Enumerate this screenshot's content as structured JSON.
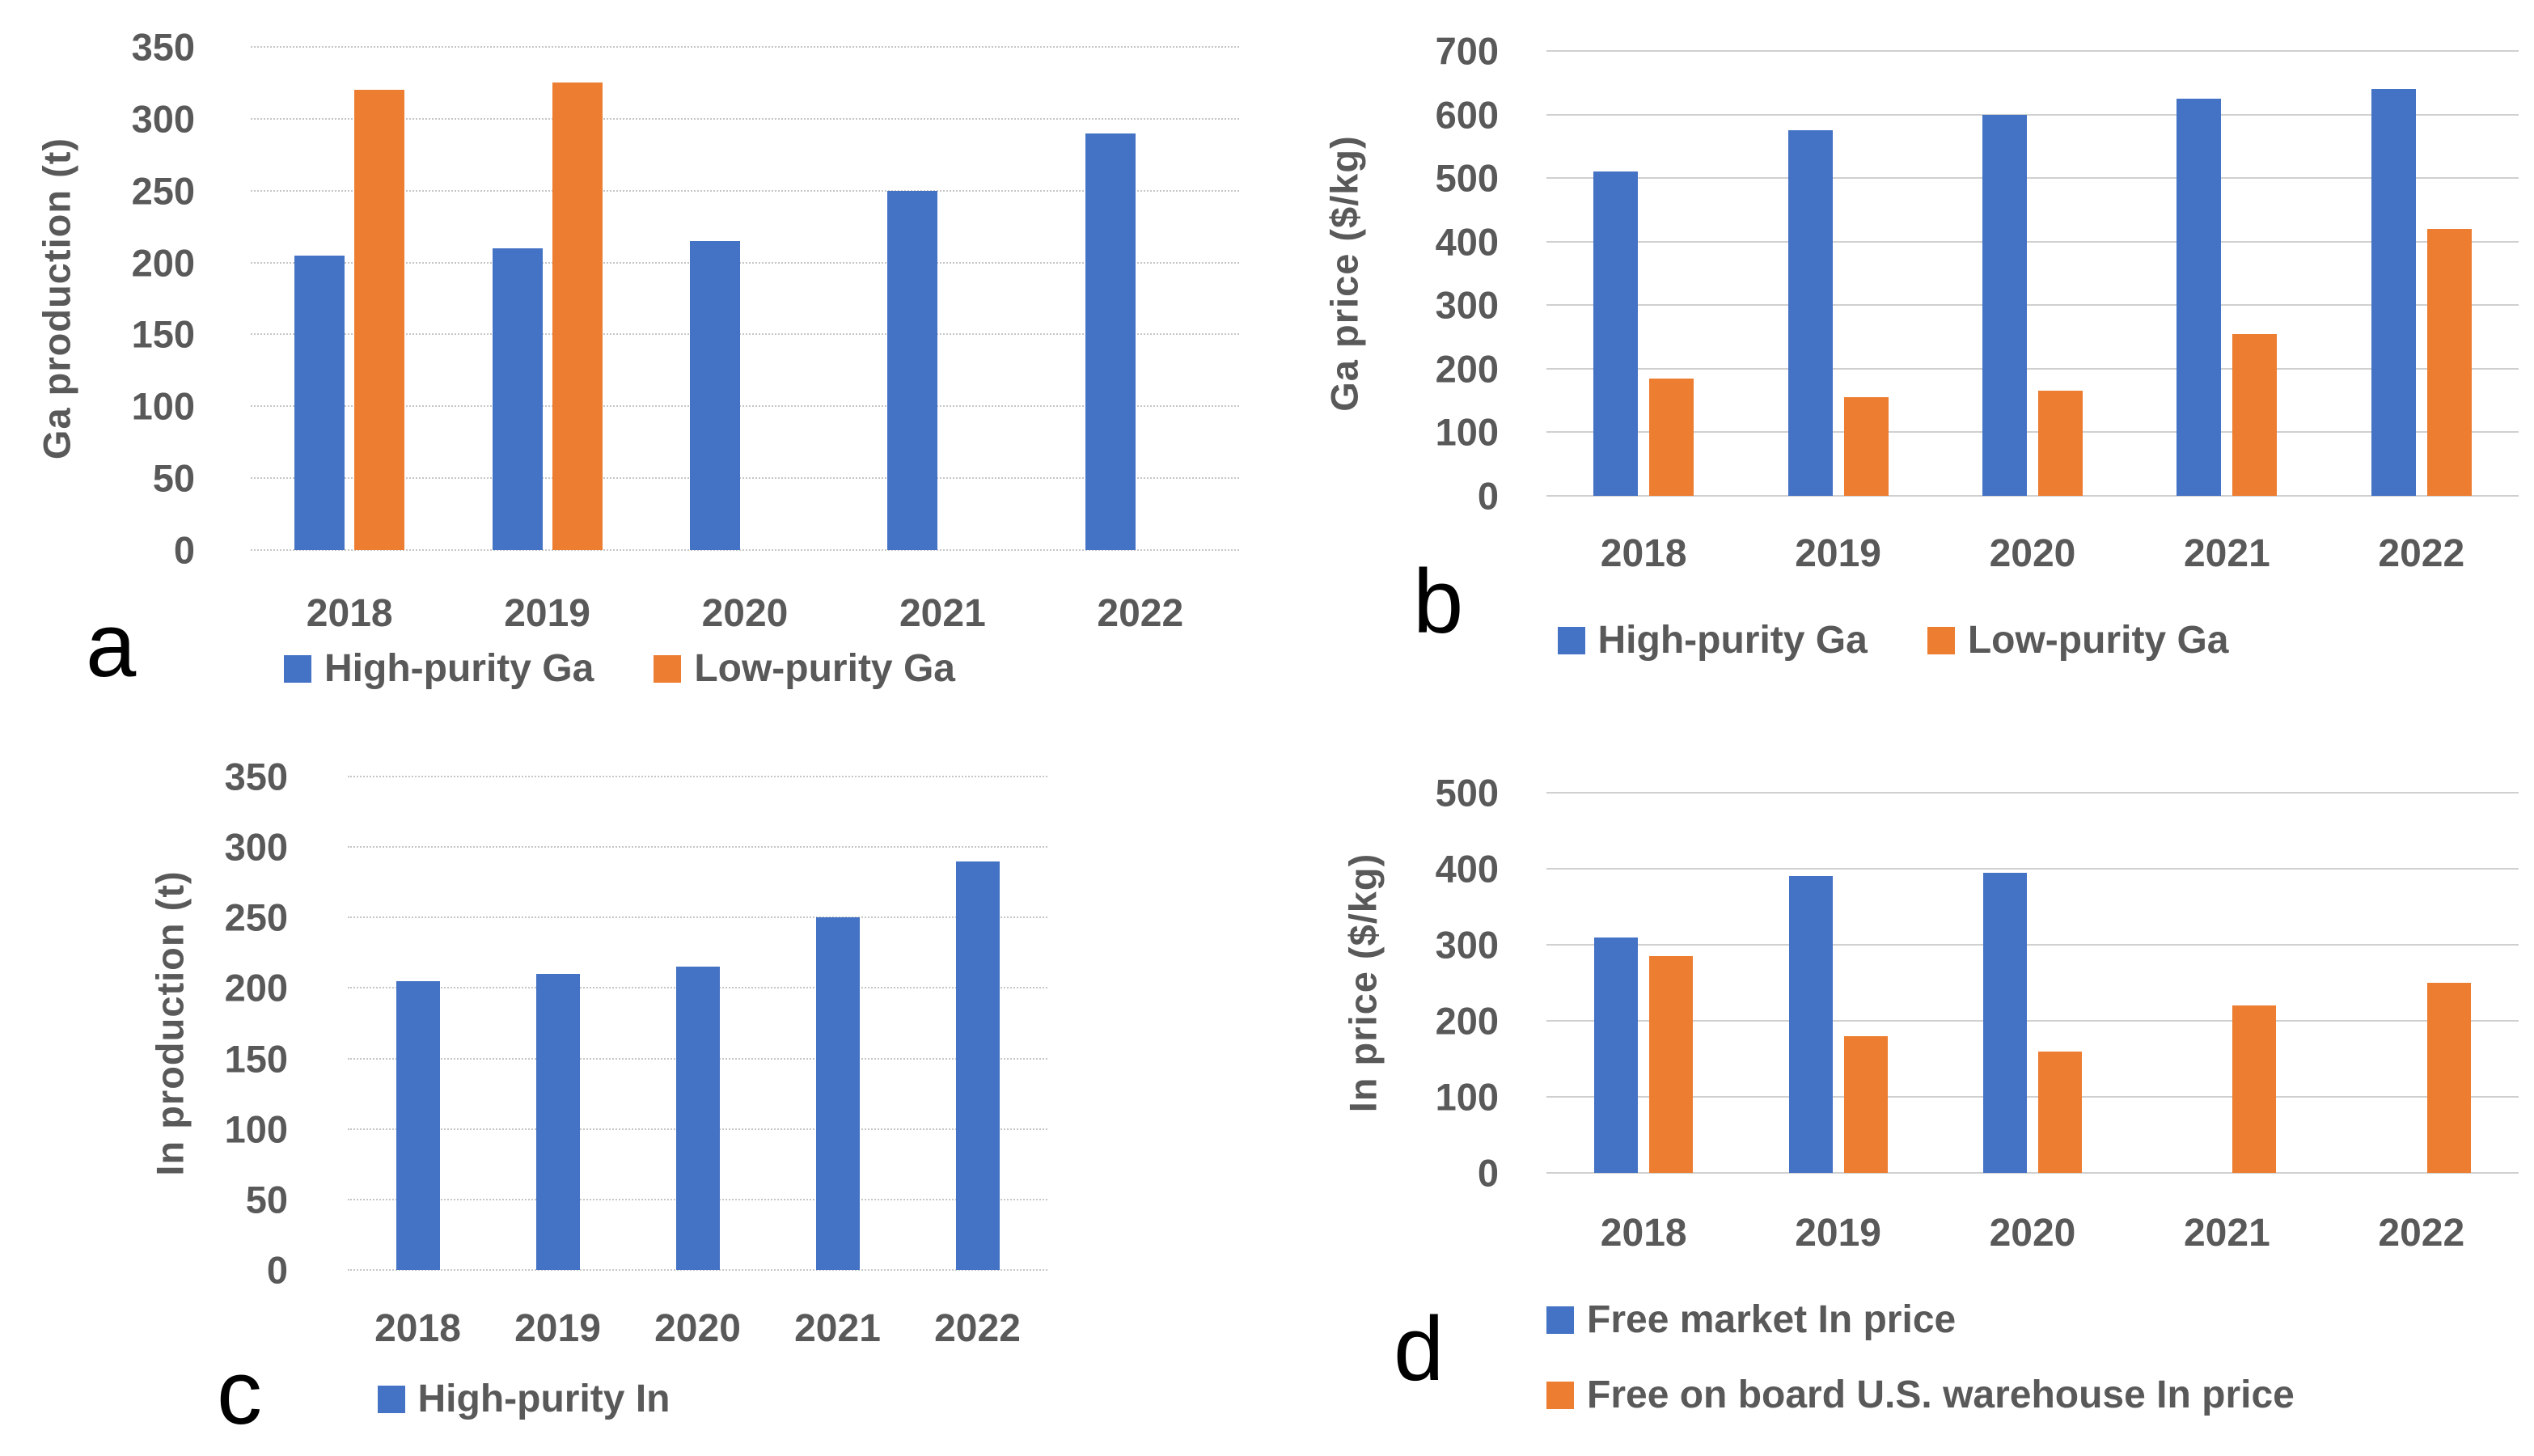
{
  "figure": {
    "background": "#ffffff",
    "text_color": "#595959",
    "panel_letter_color": "#000000"
  },
  "chart_data": [
    {
      "panel_label": "a",
      "type": "bar",
      "title": "",
      "xlabel": "",
      "ylabel": "Ga production (t)",
      "categories": [
        "2018",
        "2019",
        "2020",
        "2021",
        "2022"
      ],
      "ylim": [
        0,
        350
      ],
      "ytick_step": 50,
      "grid": "dotted-horizontal",
      "legend_position": "bottom-center-row",
      "series": [
        {
          "name": "High-purity Ga",
          "color": "#4472C4",
          "values": [
            205,
            210,
            215,
            250,
            290
          ]
        },
        {
          "name": "Low-purity Ga",
          "color": "#ED7D31",
          "values": [
            320,
            325,
            null,
            null,
            null
          ]
        }
      ]
    },
    {
      "panel_label": "b",
      "type": "bar",
      "title": "",
      "xlabel": "",
      "ylabel": "Ga price ($/kg)",
      "categories": [
        "2018",
        "2019",
        "2020",
        "2021",
        "2022"
      ],
      "ylim": [
        0,
        700
      ],
      "ytick_step": 100,
      "grid": "solid-horizontal",
      "legend_position": "bottom-center-row",
      "series": [
        {
          "name": "High-purity Ga",
          "color": "#4472C4",
          "values": [
            510,
            575,
            600,
            625,
            640
          ]
        },
        {
          "name": "Low-purity Ga",
          "color": "#ED7D31",
          "values": [
            185,
            155,
            165,
            255,
            420
          ]
        }
      ]
    },
    {
      "panel_label": "c",
      "type": "bar",
      "title": "",
      "xlabel": "",
      "ylabel": "In production (t)",
      "categories": [
        "2018",
        "2019",
        "2020",
        "2021",
        "2022"
      ],
      "ylim": [
        0,
        350
      ],
      "ytick_step": 50,
      "grid": "dotted-horizontal",
      "legend_position": "bottom-center-row",
      "series": [
        {
          "name": "High-purity In",
          "color": "#4472C4",
          "values": [
            205,
            210,
            215,
            250,
            290
          ]
        }
      ]
    },
    {
      "panel_label": "d",
      "type": "bar",
      "title": "",
      "xlabel": "",
      "ylabel": "In price ($/kg)",
      "categories": [
        "2018",
        "2019",
        "2020",
        "2021",
        "2022"
      ],
      "ylim": [
        0,
        500
      ],
      "ytick_step": 100,
      "grid": "solid-horizontal",
      "legend_position": "bottom-left-column",
      "series": [
        {
          "name": "Free market In price",
          "color": "#4472C4",
          "values": [
            310,
            390,
            395,
            null,
            null
          ]
        },
        {
          "name": "Free on board U.S. warehouse In price",
          "color": "#ED7D31",
          "values": [
            285,
            180,
            160,
            220,
            250
          ]
        }
      ]
    }
  ]
}
